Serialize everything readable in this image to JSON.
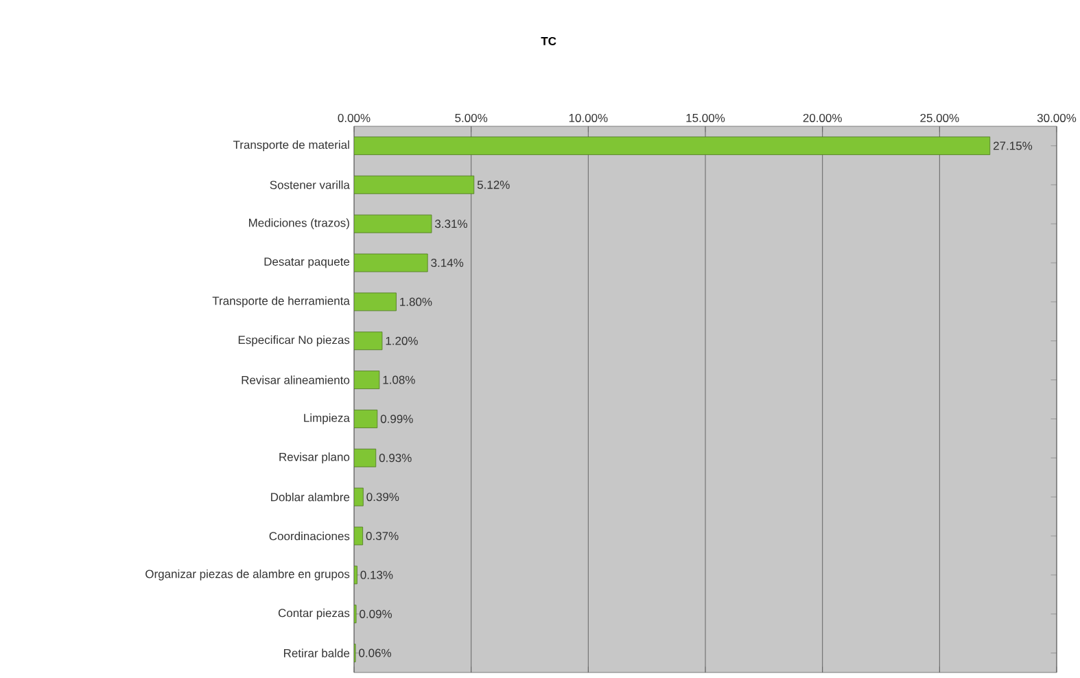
{
  "chart_data": {
    "type": "bar",
    "orientation": "horizontal",
    "title": "TC",
    "categories": [
      "Transporte de  material",
      "Sostener varilla",
      "Mediciones (trazos)",
      "Desatar paquete",
      "Transporte de  herramienta",
      "Especificar No piezas",
      "Revisar alineamiento",
      "Limpieza",
      "Revisar plano",
      "Doblar alambre",
      "Coordinaciones",
      "Organizar piezas de alambre en grupos",
      "Contar piezas",
      "Retirar balde"
    ],
    "values": [
      27.15,
      5.12,
      3.31,
      3.14,
      1.8,
      1.2,
      1.08,
      0.99,
      0.93,
      0.39,
      0.37,
      0.13,
      0.09,
      0.06
    ],
    "value_labels": [
      "27.15%",
      "5.12%",
      "3.31%",
      "3.14%",
      "1.80%",
      "1.20%",
      "1.08%",
      "0.99%",
      "0.93%",
      "0.39%",
      "0.37%",
      "0.13%",
      "0.09%",
      "0.06%"
    ],
    "color": "#80c534",
    "xlim": [
      0,
      30
    ],
    "xticks": [
      {
        "value": 0,
        "label": "0.00%"
      },
      {
        "value": 5,
        "label": "5.00%"
      },
      {
        "value": 10,
        "label": "10.00%"
      },
      {
        "value": 15,
        "label": "15.00%"
      },
      {
        "value": 20,
        "label": "20.00%"
      },
      {
        "value": 25,
        "label": "25.00%"
      },
      {
        "value": 30,
        "label": "30.00%"
      }
    ],
    "grid": "x"
  }
}
